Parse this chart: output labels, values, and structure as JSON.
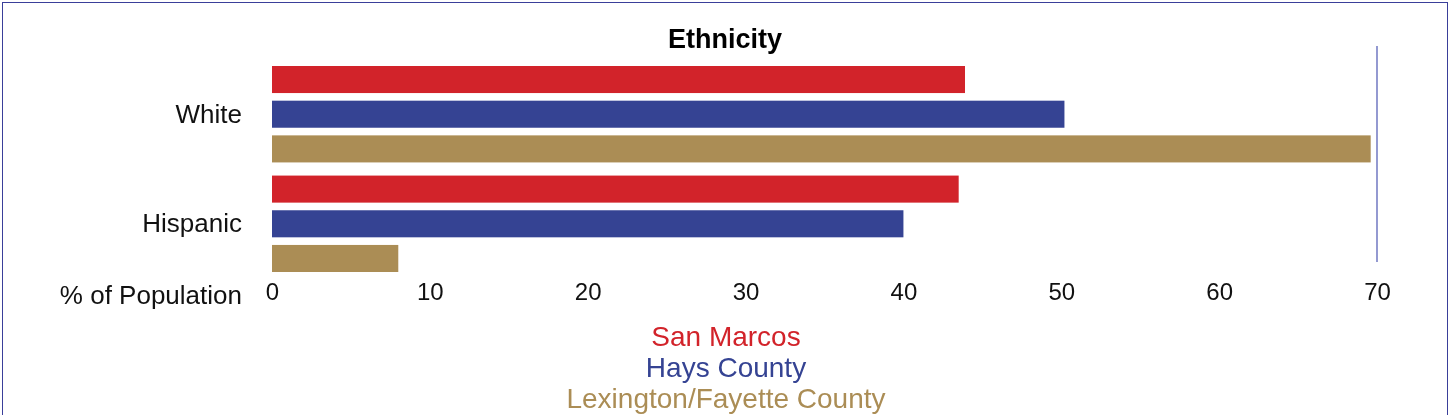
{
  "chart_data": {
    "type": "bar",
    "orientation": "horizontal",
    "title": "Ethnicity",
    "xlabel": "% of Population",
    "categories": [
      "White",
      "Hispanic"
    ],
    "series": [
      {
        "name": "San Marcos",
        "color": "#d2232a",
        "values": [
          43.9,
          43.5
        ]
      },
      {
        "name": "Hays County",
        "color": "#354393",
        "values": [
          50.2,
          40.0
        ]
      },
      {
        "name": "Lexington/Fayette County",
        "color": "#ab8d55",
        "values": [
          69.6,
          8.0
        ]
      }
    ],
    "xlim": [
      0,
      70
    ],
    "xticks": [
      0,
      10,
      20,
      30,
      40,
      50,
      60,
      70
    ],
    "legend": "bottom",
    "grid": false
  }
}
